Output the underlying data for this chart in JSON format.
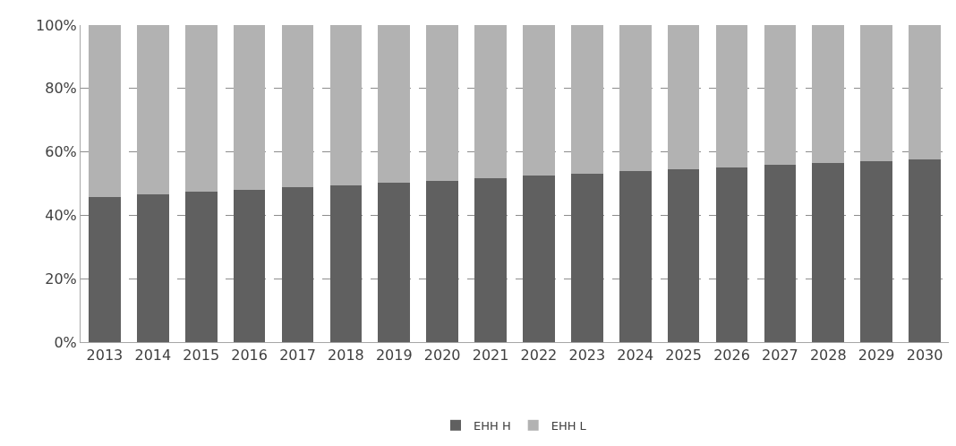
{
  "chart_data": {
    "type": "bar",
    "stacked": true,
    "categories": [
      "2013",
      "2014",
      "2015",
      "2016",
      "2017",
      "2018",
      "2019",
      "2020",
      "2021",
      "2022",
      "2023",
      "2024",
      "2025",
      "2026",
      "2027",
      "2028",
      "2029",
      "2030"
    ],
    "series": [
      {
        "name": "EHH H",
        "color": "#606060",
        "values": [
          45.9,
          46.6,
          47.4,
          48.0,
          48.8,
          49.5,
          50.2,
          50.9,
          51.8,
          52.5,
          53.2,
          54.0,
          54.6,
          55.1,
          55.9,
          56.4,
          57.0,
          57.7
        ]
      },
      {
        "name": "EHH L",
        "color": "#b2b2b2",
        "values": [
          54.1,
          53.4,
          52.6,
          52.0,
          51.2,
          50.5,
          49.8,
          49.1,
          48.2,
          47.5,
          46.8,
          46.0,
          45.4,
          44.9,
          44.1,
          43.6,
          43.0,
          42.3
        ]
      }
    ],
    "ylim": [
      0,
      100
    ],
    "yticks": [
      {
        "value": 0,
        "label": "0%"
      },
      {
        "value": 20,
        "label": "20%"
      },
      {
        "value": 40,
        "label": "40%"
      },
      {
        "value": 60,
        "label": "60%"
      },
      {
        "value": 80,
        "label": "80%"
      },
      {
        "value": 100,
        "label": "100%"
      }
    ],
    "grid": "y",
    "legend": "bottom"
  }
}
